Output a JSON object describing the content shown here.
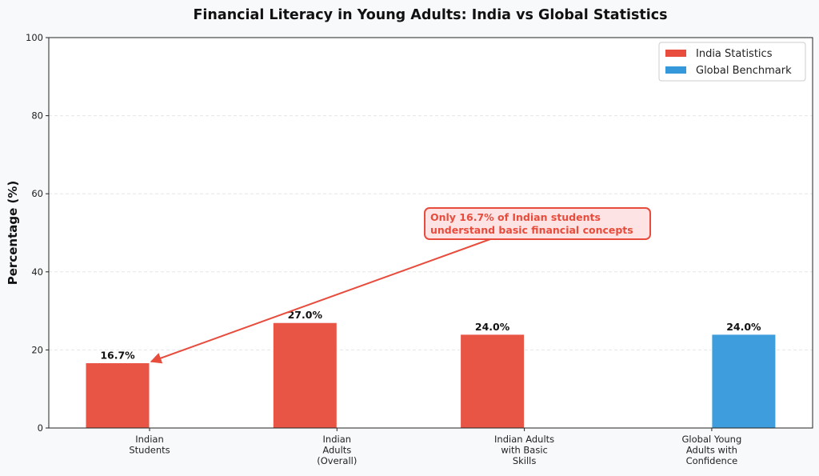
{
  "chart_data": {
    "type": "bar",
    "title": "Financial Literacy in Young Adults: India vs Global Statistics",
    "xlabel": "",
    "ylabel": "Percentage (%)",
    "ylim": [
      0,
      100
    ],
    "yticks": [
      0,
      20,
      40,
      60,
      80,
      100
    ],
    "grid": "horizontal dashed",
    "categories": [
      [
        "Indian",
        "Students"
      ],
      [
        "Indian",
        "Adults",
        "(Overall)"
      ],
      [
        "Indian Adults",
        "with Basic",
        "Skills"
      ],
      [
        "Global Young",
        "Adults with",
        "Confidence"
      ]
    ],
    "series": [
      {
        "name": "India Statistics",
        "color": "#e74c3c",
        "values": [
          16.7,
          27.0,
          24.0,
          null
        ]
      },
      {
        "name": "Global Benchmark",
        "color": "#3498db",
        "values": [
          null,
          null,
          null,
          24.0
        ]
      }
    ],
    "data_labels": [
      "16.7%",
      "27.0%",
      "24.0%",
      "24.0%"
    ],
    "legend_position": "top-right",
    "annotation": {
      "lines": [
        "Only 16.7% of Indian students",
        "understand basic financial concepts"
      ],
      "target_category": 0,
      "target_value": 16.7,
      "color": "#e74c3c"
    }
  }
}
